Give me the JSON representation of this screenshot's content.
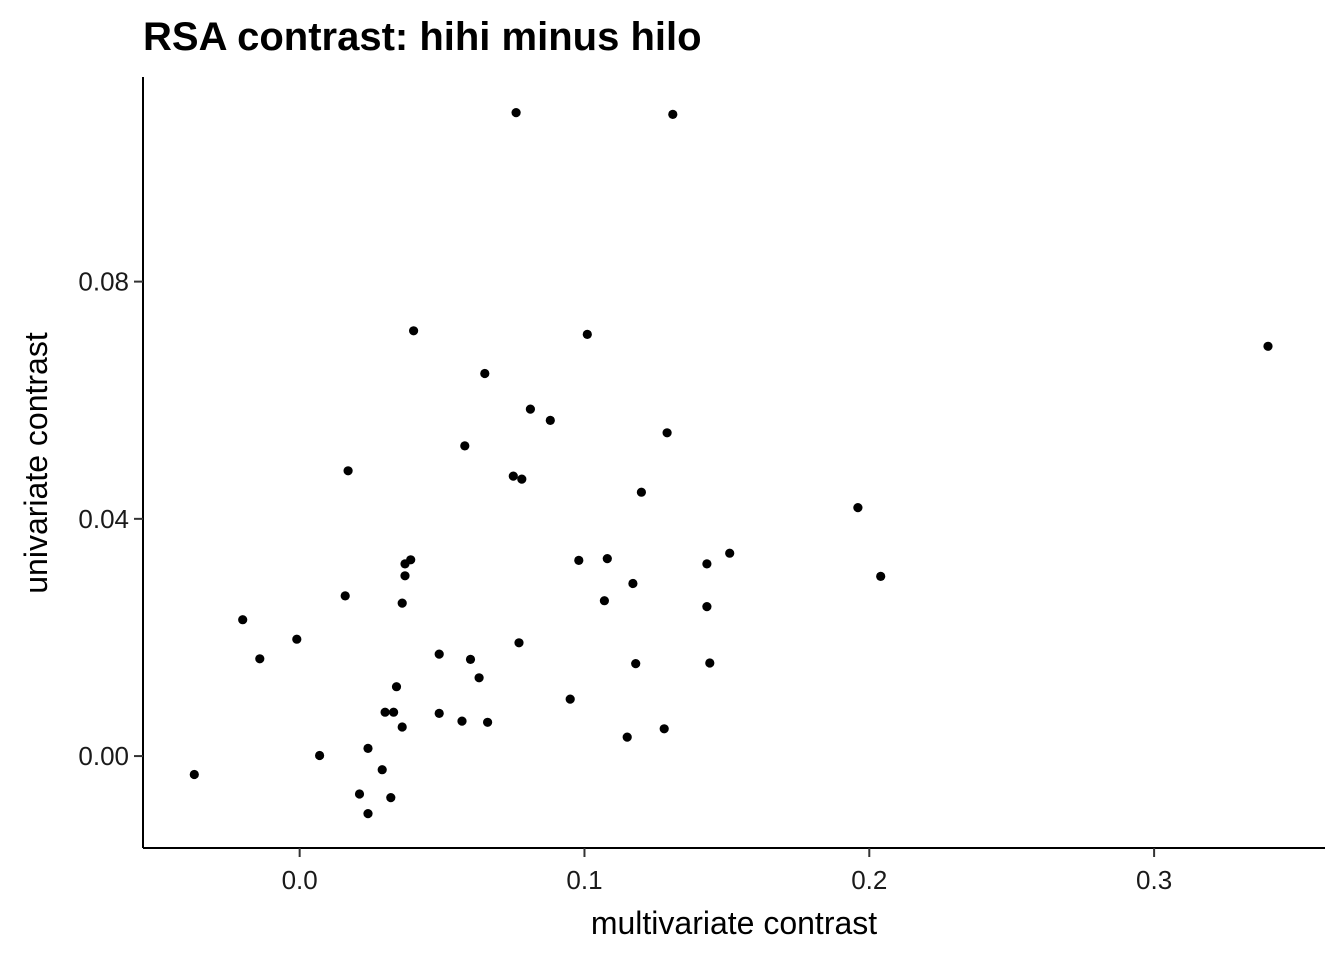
{
  "chart_data": {
    "type": "scatter",
    "title": "RSA contrast: hihi minus hilo",
    "xlabel": "multivariate contrast",
    "ylabel": "univariate contrast",
    "xlim": [
      -0.055,
      0.36
    ],
    "ylim": [
      -0.0155,
      0.1145
    ],
    "x_ticks": [
      0.0,
      0.1,
      0.2,
      0.3
    ],
    "x_tick_labels": [
      "0.0",
      "0.1",
      "0.2",
      "0.3"
    ],
    "y_ticks": [
      0.0,
      0.04,
      0.08
    ],
    "y_tick_labels": [
      "0.00",
      "0.04",
      "0.08"
    ],
    "grid": false,
    "legend": "none",
    "point_color": "#000000",
    "points": [
      [
        0.076,
        0.1085
      ],
      [
        0.131,
        0.1082
      ],
      [
        0.04,
        0.0717
      ],
      [
        0.101,
        0.0711
      ],
      [
        0.34,
        0.0691
      ],
      [
        0.065,
        0.0645
      ],
      [
        0.081,
        0.0585
      ],
      [
        0.088,
        0.0566
      ],
      [
        0.129,
        0.0545
      ],
      [
        0.058,
        0.0523
      ],
      [
        0.017,
        0.0481
      ],
      [
        0.075,
        0.0472
      ],
      [
        0.078,
        0.0467
      ],
      [
        0.12,
        0.0445
      ],
      [
        0.196,
        0.0419
      ],
      [
        0.151,
        0.0342
      ],
      [
        0.039,
        0.0331
      ],
      [
        0.108,
        0.0333
      ],
      [
        0.098,
        0.033
      ],
      [
        0.037,
        0.0324
      ],
      [
        0.143,
        0.0324
      ],
      [
        0.037,
        0.0304
      ],
      [
        0.204,
        0.0303
      ],
      [
        0.117,
        0.0291
      ],
      [
        0.016,
        0.027
      ],
      [
        0.107,
        0.0262
      ],
      [
        0.036,
        0.0258
      ],
      [
        0.143,
        0.0252
      ],
      [
        -0.02,
        0.023
      ],
      [
        -0.001,
        0.0197
      ],
      [
        0.077,
        0.0191
      ],
      [
        0.049,
        0.0172
      ],
      [
        -0.014,
        0.0164
      ],
      [
        0.06,
        0.0163
      ],
      [
        0.118,
        0.0156
      ],
      [
        0.144,
        0.0157
      ],
      [
        0.063,
        0.0132
      ],
      [
        0.034,
        0.0117
      ],
      [
        0.095,
        0.0096
      ],
      [
        0.03,
        0.0074
      ],
      [
        0.033,
        0.0074
      ],
      [
        0.049,
        0.0072
      ],
      [
        0.057,
        0.0059
      ],
      [
        0.066,
        0.0057
      ],
      [
        0.036,
        0.0049
      ],
      [
        0.128,
        0.0046
      ],
      [
        0.115,
        0.0032
      ],
      [
        0.024,
        0.0013
      ],
      [
        0.007,
        0.0001
      ],
      [
        0.029,
        -0.0023
      ],
      [
        -0.037,
        -0.0031
      ],
      [
        0.021,
        -0.0064
      ],
      [
        0.032,
        -0.007
      ],
      [
        0.024,
        -0.0097
      ]
    ]
  }
}
